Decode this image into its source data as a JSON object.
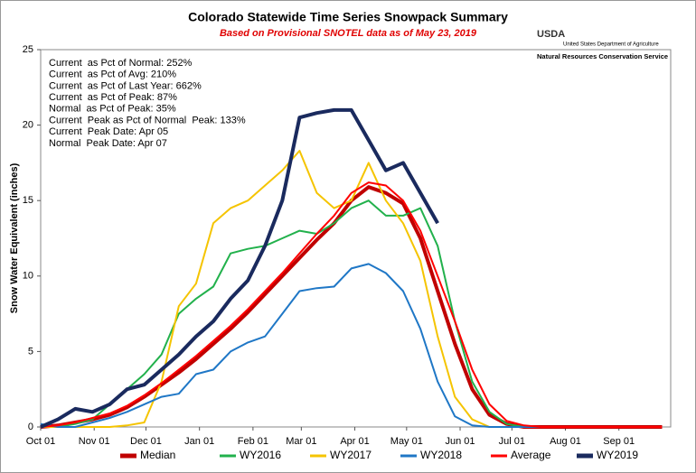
{
  "chart_data": {
    "type": "line",
    "title": "Colorado Statewide Time Series Snowpack Summary",
    "subtitle": "Based on Provisional SNOTEL data as of May 23, 2019",
    "y_label": "Snow Water Equivalent (inches)",
    "logo": {
      "mark": "USDA",
      "department": "United States Department of Agriculture",
      "service": "Natural Resources Conservation Service"
    },
    "annotations": [
      "Current  as Pct of Normal: 252%",
      "Current  as Pct of Avg: 210%",
      "Current  as Pct of Last Year: 662%",
      "Current  as Pct of Peak: 87%",
      "Normal  as Pct of Peak: 35%",
      "Current  Peak as Pct of Normal  Peak: 133%",
      "Current  Peak Date: Apr 05",
      "Normal  Peak Date: Apr 07"
    ],
    "x": [
      0,
      10,
      20,
      30,
      40,
      50,
      60,
      70,
      80,
      90,
      100,
      110,
      120,
      130,
      140,
      150,
      160,
      170,
      180,
      190,
      200,
      210,
      220,
      230,
      240,
      250,
      260,
      270,
      280,
      290,
      300,
      310,
      320,
      330,
      340,
      350,
      360
    ],
    "xlim": [
      0,
      365
    ],
    "xticks": [
      {
        "value": 0,
        "label": "Oct 01"
      },
      {
        "value": 31,
        "label": "Nov 01"
      },
      {
        "value": 61,
        "label": "Dec 01"
      },
      {
        "value": 92,
        "label": "Jan 01"
      },
      {
        "value": 123,
        "label": "Feb 01"
      },
      {
        "value": 151,
        "label": "Mar 01"
      },
      {
        "value": 182,
        "label": "Apr 01"
      },
      {
        "value": 212,
        "label": "May 01"
      },
      {
        "value": 243,
        "label": "Jun 01"
      },
      {
        "value": 273,
        "label": "Jul 01"
      },
      {
        "value": 304,
        "label": "Aug 01"
      },
      {
        "value": 335,
        "label": "Sep 01"
      }
    ],
    "ylim": [
      0,
      25
    ],
    "yticks": [
      0,
      5,
      10,
      15,
      20,
      25
    ],
    "series": [
      {
        "name": "Median",
        "color": "#c00000",
        "width": 4,
        "values": [
          0,
          0.1,
          0.3,
          0.5,
          0.8,
          1.3,
          2,
          2.8,
          3.6,
          4.5,
          5.5,
          6.5,
          7.6,
          8.8,
          10,
          11.2,
          12.4,
          13.5,
          15,
          15.9,
          15.5,
          14.8,
          12.5,
          9,
          5.5,
          2.5,
          0.8,
          0.2,
          0,
          0,
          0,
          0,
          0,
          0,
          0,
          0,
          0
        ]
      },
      {
        "name": "WY2016",
        "color": "#22b14c",
        "width": 2,
        "values": [
          0,
          0,
          0.2,
          0.5,
          1.5,
          2.5,
          3.5,
          4.8,
          7.5,
          8.5,
          9.3,
          11.5,
          11.8,
          12,
          12.5,
          13,
          12.8,
          13.5,
          14.5,
          15,
          14,
          14,
          14.5,
          12,
          7,
          3,
          1,
          0.2,
          0,
          0,
          0,
          0,
          0,
          0,
          0,
          0,
          0
        ]
      },
      {
        "name": "WY2017",
        "color": "#f5c400",
        "width": 2,
        "values": [
          0,
          0,
          0,
          0,
          0,
          0.1,
          0.3,
          3,
          8,
          9.5,
          13.5,
          14.5,
          15,
          16,
          17,
          18.3,
          15.5,
          14.5,
          15,
          17.5,
          15,
          13.5,
          11,
          6,
          2,
          0.5,
          0,
          0,
          0,
          0,
          0,
          0,
          0,
          0,
          0,
          0,
          0
        ]
      },
      {
        "name": "WY2018",
        "color": "#1f77c6",
        "width": 2,
        "values": [
          0.2,
          0,
          0,
          0.3,
          0.6,
          1,
          1.5,
          2,
          2.2,
          3.5,
          3.8,
          5,
          5.6,
          6,
          7.5,
          9,
          9.2,
          9.3,
          10.5,
          10.8,
          10.2,
          9,
          6.5,
          3,
          0.7,
          0.1,
          0,
          0,
          0,
          0,
          0,
          0,
          0,
          0,
          0,
          0,
          0
        ]
      },
      {
        "name": "Average",
        "color": "#ff0000",
        "width": 2,
        "values": [
          0,
          0.1,
          0.3,
          0.6,
          0.9,
          1.4,
          2.1,
          2.9,
          3.8,
          4.7,
          5.7,
          6.7,
          7.8,
          9,
          10.2,
          11.5,
          12.8,
          14,
          15.5,
          16.2,
          16,
          15,
          13,
          10,
          7,
          3.8,
          1.5,
          0.4,
          0.1,
          0,
          0,
          0,
          0,
          0,
          0,
          0,
          0
        ]
      },
      {
        "name": "WY2019",
        "color": "#1a2a5e",
        "width": 4,
        "values": [
          0,
          0.5,
          1.2,
          1,
          1.5,
          2.5,
          2.8,
          3.8,
          4.8,
          6,
          7,
          8.5,
          9.7,
          12,
          15,
          20.5,
          20.8,
          21,
          21,
          19,
          17,
          17.5,
          15.5,
          13.5,
          null,
          null,
          null,
          null,
          null,
          null,
          null,
          null,
          null,
          null,
          null,
          null,
          null
        ]
      }
    ]
  }
}
